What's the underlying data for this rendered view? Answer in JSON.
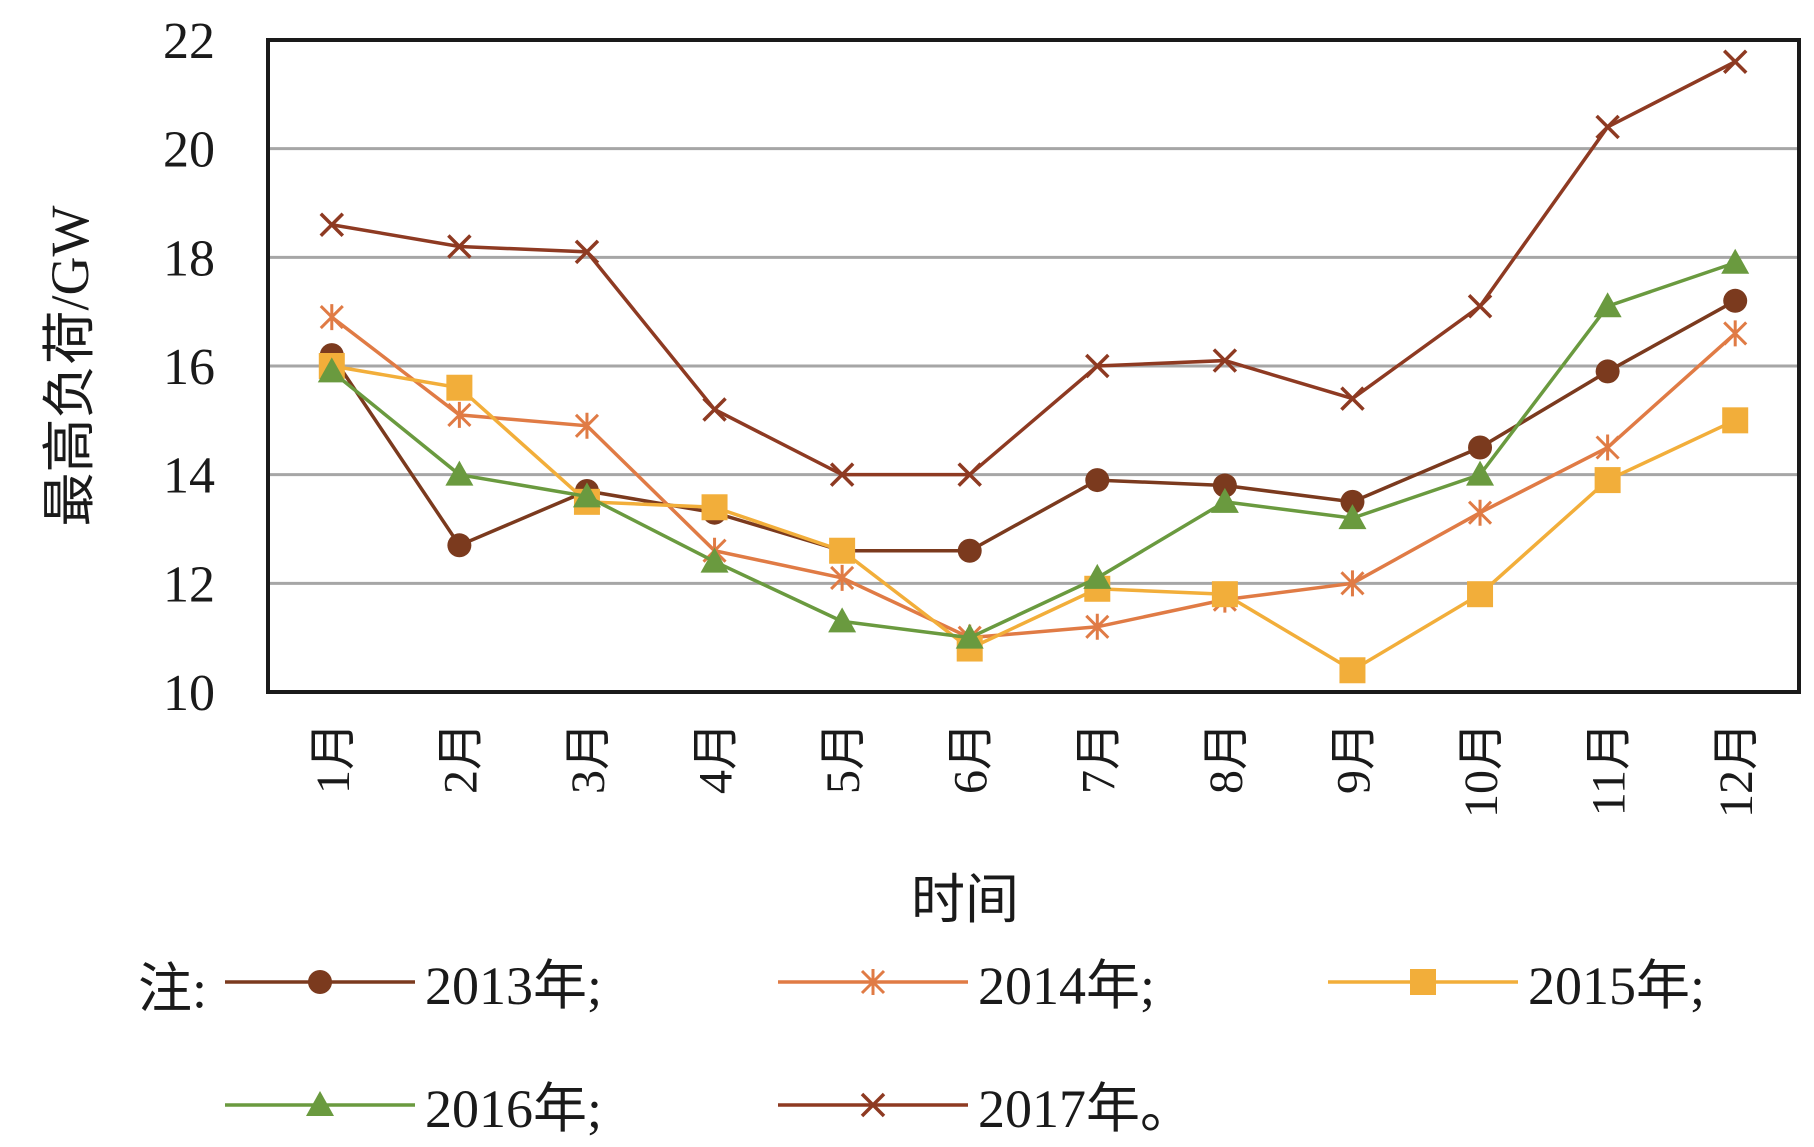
{
  "chart_data": {
    "type": "line",
    "categories": [
      "1月",
      "2月",
      "3月",
      "4月",
      "5月",
      "6月",
      "7月",
      "8月",
      "9月",
      "10月",
      "11月",
      "12月"
    ],
    "xlabel": "时间",
    "ylabel": "最高负荷/GW",
    "ylim": [
      10,
      22
    ],
    "yticks": [
      10,
      12,
      14,
      16,
      18,
      20,
      22
    ],
    "grid": true,
    "legend_prefix": "注:",
    "series": [
      {
        "name": "2013年",
        "legend_label": "2013年;",
        "color": "#7b3a1e",
        "marker": "circle",
        "values": [
          16.2,
          12.7,
          13.7,
          13.3,
          12.6,
          12.6,
          13.9,
          13.8,
          13.5,
          14.5,
          15.9,
          17.2
        ]
      },
      {
        "name": "2014年",
        "legend_label": "2014年;",
        "color": "#e07b45",
        "marker": "star",
        "values": [
          16.9,
          15.1,
          14.9,
          12.6,
          12.1,
          11.0,
          11.2,
          11.7,
          12.0,
          13.3,
          14.5,
          16.6
        ]
      },
      {
        "name": "2015年",
        "legend_label": "2015年;",
        "color": "#f2ae3a",
        "marker": "square",
        "values": [
          16.0,
          15.6,
          13.5,
          13.4,
          12.6,
          10.8,
          11.9,
          11.8,
          10.4,
          11.8,
          13.9,
          15.0
        ]
      },
      {
        "name": "2016年",
        "legend_label": "2016年;",
        "color": "#6a9a3f",
        "marker": "triangle",
        "values": [
          15.9,
          14.0,
          13.6,
          12.4,
          11.3,
          11.0,
          12.1,
          13.5,
          13.2,
          14.0,
          17.1,
          17.9
        ]
      },
      {
        "name": "2017年",
        "legend_label": "2017年。",
        "color": "#8e3a22",
        "marker": "x",
        "values": [
          18.6,
          18.2,
          18.1,
          15.2,
          14.0,
          14.0,
          16.0,
          16.1,
          15.4,
          17.1,
          20.4,
          21.6
        ]
      }
    ]
  }
}
